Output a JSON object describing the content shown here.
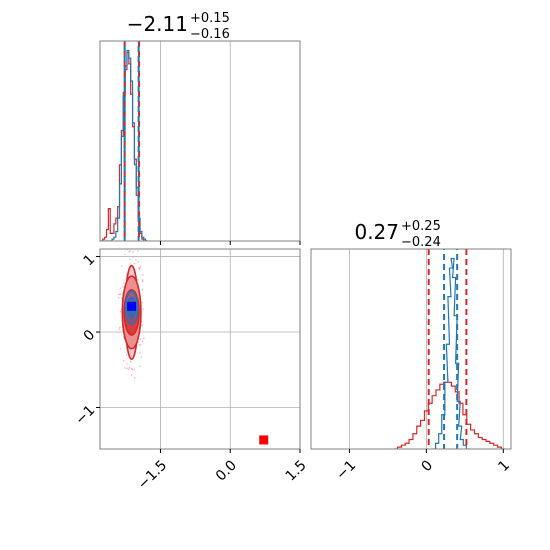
{
  "chart_data": {
    "type": "corner",
    "colors": {
      "red": "#d62728",
      "blue": "#1f77b4",
      "truth_low": "#0000ff",
      "truth_high": "#ff0000",
      "grid": "#b0b0b0",
      "contour_fill": "#f2c5c6"
    },
    "panels": [
      {
        "id": "hist-1",
        "type": "histogram",
        "title": {
          "value": "-2.11",
          "plus": "+0.15",
          "minus": "-0.16"
        },
        "xlim": [
          -2.8,
          1.5
        ],
        "ylim": [
          0,
          1.05
        ],
        "x_ticks": [
          -1.5,
          0.0,
          1.5
        ],
        "x_tick_labels": [],
        "red_series": {
          "x": [
            -2.76,
            -2.72,
            -2.68,
            -2.64,
            -2.6,
            -2.56,
            -2.52,
            -2.48,
            -2.44,
            -2.4,
            -2.36,
            -2.32,
            -2.28,
            -2.24,
            -2.2,
            -2.16,
            -2.12,
            -2.08,
            -2.04,
            -2.0,
            -1.96,
            -1.92,
            -1.88,
            -1.84,
            -1.8
          ],
          "y": [
            0.0,
            0.01,
            0.02,
            0.06,
            0.17,
            0.04,
            0.04,
            0.09,
            0.12,
            0.18,
            0.4,
            0.58,
            0.76,
            0.9,
            0.99,
            0.93,
            0.77,
            0.6,
            0.43,
            0.28,
            0.12,
            0.04,
            0.01,
            0.0,
            0.0
          ]
        },
        "blue_series": {
          "x": [
            -2.76,
            -2.72,
            -2.68,
            -2.64,
            -2.6,
            -2.56,
            -2.52,
            -2.48,
            -2.44,
            -2.4,
            -2.36,
            -2.32,
            -2.28,
            -2.24,
            -2.2,
            -2.16,
            -2.12,
            -2.08,
            -2.04,
            -2.0,
            -1.96,
            -1.92,
            -1.88,
            -1.84,
            -1.8
          ],
          "y": [
            0.0,
            0.0,
            0.0,
            0.0,
            0.0,
            0.0,
            0.01,
            0.02,
            0.05,
            0.12,
            0.3,
            0.55,
            0.78,
            0.92,
            1.0,
            0.96,
            0.84,
            0.62,
            0.4,
            0.24,
            0.12,
            0.05,
            0.02,
            0.01,
            0.0
          ]
        },
        "red_quantiles": [
          -2.27,
          -1.96
        ],
        "blue_quantiles": [
          -2.27,
          -1.97
        ]
      },
      {
        "id": "hist-2",
        "type": "histogram",
        "title": {
          "value": "0.27",
          "plus": "+0.25",
          "minus": "-0.24"
        },
        "xlim": [
          -1.5,
          1.1
        ],
        "ylim": [
          0,
          1.05
        ],
        "x_ticks": [
          -1,
          0,
          1
        ],
        "x_tick_labels": [
          "−1",
          "0",
          "1"
        ],
        "red_series": {
          "x": [
            -0.4,
            -0.35,
            -0.3,
            -0.25,
            -0.2,
            -0.15,
            -0.1,
            -0.05,
            0.0,
            0.05,
            0.1,
            0.15,
            0.2,
            0.25,
            0.3,
            0.35,
            0.4,
            0.45,
            0.5,
            0.55,
            0.6,
            0.65,
            0.7,
            0.75,
            0.8,
            0.85,
            0.9,
            0.95,
            1.0
          ],
          "y": [
            0.0,
            0.01,
            0.02,
            0.03,
            0.05,
            0.08,
            0.12,
            0.15,
            0.2,
            0.24,
            0.28,
            0.31,
            0.34,
            0.35,
            0.35,
            0.33,
            0.3,
            0.24,
            0.18,
            0.13,
            0.1,
            0.08,
            0.06,
            0.05,
            0.04,
            0.03,
            0.02,
            0.01,
            0.0
          ]
        },
        "blue_series": {
          "x": [
            0.1,
            0.14,
            0.18,
            0.22,
            0.26,
            0.28,
            0.3,
            0.32,
            0.34,
            0.36,
            0.38,
            0.4,
            0.42,
            0.44,
            0.46,
            0.5,
            0.54
          ],
          "y": [
            0.0,
            0.03,
            0.08,
            0.18,
            0.35,
            0.55,
            0.8,
            0.95,
            1.0,
            0.9,
            0.7,
            0.45,
            0.25,
            0.12,
            0.05,
            0.02,
            0.0
          ]
        },
        "red_quantiles": [
          0.03,
          0.52
        ],
        "blue_quantiles": [
          0.23,
          0.4
        ]
      },
      {
        "id": "joint",
        "type": "contour",
        "xlim": [
          -2.8,
          1.5
        ],
        "ylim": [
          -1.55,
          1.1
        ],
        "x_ticks": [
          -1.5,
          0.0,
          1.5
        ],
        "x_tick_labels": [
          "−1.5",
          "0.0",
          "1.5"
        ],
        "y_ticks": [
          -1,
          0,
          1
        ],
        "y_tick_labels": [
          "−1",
          "0",
          "1"
        ],
        "red_center": [
          -2.12,
          0.26
        ],
        "red_levels_sigma": [
          [
            0.14,
            0.62
          ],
          [
            0.2,
            0.48
          ],
          [
            0.16,
            0.3
          ],
          [
            0.08,
            0.16
          ]
        ],
        "blue_center": [
          -2.12,
          0.32
        ],
        "blue_levels_sigma": [
          [
            0.13,
            0.22
          ],
          [
            0.09,
            0.14
          ],
          [
            0.05,
            0.08
          ]
        ],
        "truth_markers": [
          {
            "x": -2.12,
            "y": 0.34,
            "color": "#0000ff"
          },
          {
            "x": 0.72,
            "y": -1.43,
            "color": "#ff0000"
          }
        ]
      }
    ]
  }
}
